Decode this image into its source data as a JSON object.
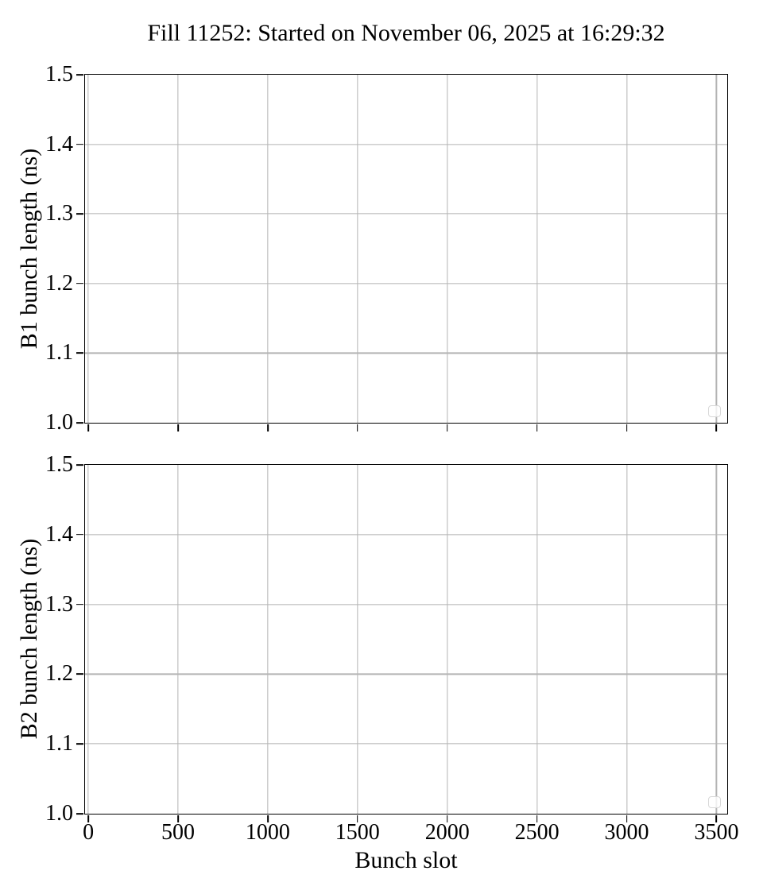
{
  "figure": {
    "title": "Fill 11252: Started on November 06, 2025 at 16:29:32"
  },
  "chart_data": [
    {
      "type": "line",
      "title": "Fill 11252: Started on November 06, 2025 at 16:29:32",
      "xlabel": "",
      "ylabel": "B1 bunch length (ns)",
      "xlim": [
        -18,
        3560
      ],
      "ylim": [
        1.0,
        1.5
      ],
      "xticks": [
        0,
        500,
        1000,
        1500,
        2000,
        2500,
        3000,
        3500
      ],
      "xticklabels": [
        "0",
        "500",
        "1000",
        "1500",
        "2000",
        "2500",
        "3000",
        "3500"
      ],
      "xticklabels_visible": false,
      "yticks": [
        1.0,
        1.1,
        1.2,
        1.3,
        1.4,
        1.5
      ],
      "yticklabels": [
        "1.0",
        "1.1",
        "1.2",
        "1.3",
        "1.4",
        "1.5"
      ],
      "grid": true,
      "legend": {
        "visible": true,
        "entries": [],
        "position": "lower-right"
      },
      "series": []
    },
    {
      "type": "line",
      "title": "",
      "xlabel": "Bunch slot",
      "ylabel": "B2 bunch length (ns)",
      "xlim": [
        -18,
        3560
      ],
      "ylim": [
        1.0,
        1.5
      ],
      "xticks": [
        0,
        500,
        1000,
        1500,
        2000,
        2500,
        3000,
        3500
      ],
      "xticklabels": [
        "0",
        "500",
        "1000",
        "1500",
        "2000",
        "2500",
        "3000",
        "3500"
      ],
      "xticklabels_visible": true,
      "yticks": [
        1.0,
        1.1,
        1.2,
        1.3,
        1.4,
        1.5
      ],
      "yticklabels": [
        "1.0",
        "1.1",
        "1.2",
        "1.3",
        "1.4",
        "1.5"
      ],
      "grid": true,
      "legend": {
        "visible": true,
        "entries": [],
        "position": "lower-right"
      },
      "series": []
    }
  ],
  "colors": {
    "background": "#ffffff",
    "text": "#000000",
    "spine": "#000000",
    "grid": "#b4b4b4",
    "legend_border": "#d8d8d8"
  }
}
